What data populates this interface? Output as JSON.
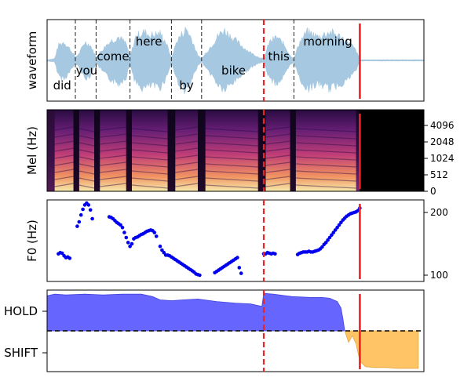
{
  "chart_data": {
    "type": "multi-panel",
    "time_range": [
      0,
      1
    ],
    "markers": {
      "dashed_red_time": 0.575,
      "solid_red_time": 0.83,
      "color": "#ee2222"
    },
    "panels": [
      {
        "id": "waveform",
        "type": "area",
        "ylabel": "waveform",
        "color": "#a6c8e0",
        "word_boundaries": [
          0.075,
          0.13,
          0.22,
          0.33,
          0.41,
          0.575,
          0.655
        ],
        "words": [
          {
            "text": "did",
            "t": 0.04,
            "level": "low"
          },
          {
            "text": "you",
            "t": 0.105,
            "level": "midlow"
          },
          {
            "text": "come",
            "t": 0.175,
            "level": "mid"
          },
          {
            "text": "here",
            "t": 0.27,
            "level": "high"
          },
          {
            "text": "by",
            "t": 0.37,
            "level": "low"
          },
          {
            "text": "bike",
            "t": 0.495,
            "level": "midlow"
          },
          {
            "text": "this",
            "t": 0.615,
            "level": "mid"
          },
          {
            "text": "morning",
            "t": 0.745,
            "level": "high"
          }
        ],
        "envelope": [
          [
            0.0,
            0.02
          ],
          [
            0.02,
            0.05
          ],
          [
            0.03,
            0.45
          ],
          [
            0.045,
            0.55
          ],
          [
            0.06,
            0.35
          ],
          [
            0.075,
            0.1
          ],
          [
            0.085,
            0.2
          ],
          [
            0.1,
            0.55
          ],
          [
            0.115,
            0.45
          ],
          [
            0.13,
            0.1
          ],
          [
            0.145,
            0.3
          ],
          [
            0.165,
            0.55
          ],
          [
            0.19,
            0.7
          ],
          [
            0.21,
            0.5
          ],
          [
            0.22,
            0.1
          ],
          [
            0.235,
            0.7
          ],
          [
            0.255,
            0.85
          ],
          [
            0.275,
            0.75
          ],
          [
            0.3,
            0.8
          ],
          [
            0.315,
            0.55
          ],
          [
            0.33,
            0.08
          ],
          [
            0.345,
            0.6
          ],
          [
            0.37,
            0.95
          ],
          [
            0.385,
            0.6
          ],
          [
            0.4,
            0.15
          ],
          [
            0.41,
            0.05
          ],
          [
            0.43,
            0.35
          ],
          [
            0.455,
            0.75
          ],
          [
            0.47,
            0.9
          ],
          [
            0.5,
            0.6
          ],
          [
            0.525,
            0.35
          ],
          [
            0.545,
            0.2
          ],
          [
            0.56,
            0.1
          ],
          [
            0.575,
            0.05
          ],
          [
            0.59,
            0.55
          ],
          [
            0.61,
            0.7
          ],
          [
            0.63,
            0.45
          ],
          [
            0.645,
            0.15
          ],
          [
            0.655,
            0.05
          ],
          [
            0.67,
            0.55
          ],
          [
            0.69,
            0.85
          ],
          [
            0.72,
            0.7
          ],
          [
            0.75,
            0.85
          ],
          [
            0.78,
            0.7
          ],
          [
            0.8,
            0.55
          ],
          [
            0.82,
            0.3
          ],
          [
            0.83,
            0.02
          ],
          [
            1.0,
            0.02
          ]
        ]
      },
      {
        "id": "mel",
        "type": "heatmap",
        "ylabel": "Mel (Hz)",
        "yticks": [
          "0",
          "512",
          "1024",
          "2048",
          "4096"
        ],
        "voiced_segments": [
          [
            0.02,
            0.07
          ],
          [
            0.085,
            0.125
          ],
          [
            0.14,
            0.21
          ],
          [
            0.225,
            0.32
          ],
          [
            0.34,
            0.4
          ],
          [
            0.42,
            0.56
          ],
          [
            0.58,
            0.645
          ],
          [
            0.66,
            0.82
          ]
        ],
        "silence_after": 0.83
      },
      {
        "id": "f0",
        "type": "scatter",
        "ylabel": "F0 (Hz)",
        "yticks": [
          100,
          200
        ],
        "ylim": [
          90,
          220
        ],
        "color": "#0000ee",
        "points": [
          [
            0.03,
            134
          ],
          [
            0.035,
            136
          ],
          [
            0.04,
            135
          ],
          [
            0.045,
            131
          ],
          [
            0.05,
            128
          ],
          [
            0.055,
            129
          ],
          [
            0.06,
            127
          ],
          [
            0.08,
            178
          ],
          [
            0.085,
            185
          ],
          [
            0.09,
            196
          ],
          [
            0.095,
            205
          ],
          [
            0.1,
            212
          ],
          [
            0.105,
            215
          ],
          [
            0.11,
            212
          ],
          [
            0.115,
            204
          ],
          [
            0.12,
            190
          ],
          [
            0.165,
            193
          ],
          [
            0.17,
            192
          ],
          [
            0.175,
            190
          ],
          [
            0.18,
            187
          ],
          [
            0.185,
            184
          ],
          [
            0.19,
            182
          ],
          [
            0.195,
            180
          ],
          [
            0.2,
            176
          ],
          [
            0.205,
            168
          ],
          [
            0.21,
            160
          ],
          [
            0.215,
            152
          ],
          [
            0.22,
            146
          ],
          [
            0.225,
            150
          ],
          [
            0.23,
            158
          ],
          [
            0.235,
            160
          ],
          [
            0.24,
            161
          ],
          [
            0.245,
            163
          ],
          [
            0.25,
            165
          ],
          [
            0.255,
            166
          ],
          [
            0.26,
            168
          ],
          [
            0.265,
            170
          ],
          [
            0.27,
            171
          ],
          [
            0.275,
            172
          ],
          [
            0.28,
            171
          ],
          [
            0.285,
            168
          ],
          [
            0.29,
            162
          ],
          [
            0.3,
            146
          ],
          [
            0.305,
            140
          ],
          [
            0.31,
            136
          ],
          [
            0.315,
            132
          ],
          [
            0.32,
            132
          ],
          [
            0.325,
            131
          ],
          [
            0.33,
            129
          ],
          [
            0.335,
            127
          ],
          [
            0.34,
            125
          ],
          [
            0.345,
            123
          ],
          [
            0.35,
            121
          ],
          [
            0.355,
            119
          ],
          [
            0.36,
            117
          ],
          [
            0.365,
            115
          ],
          [
            0.37,
            113
          ],
          [
            0.375,
            111
          ],
          [
            0.38,
            109
          ],
          [
            0.385,
            107
          ],
          [
            0.39,
            105
          ],
          [
            0.395,
            102
          ],
          [
            0.4,
            101
          ],
          [
            0.405,
            100
          ],
          [
            0.445,
            104
          ],
          [
            0.45,
            106
          ],
          [
            0.455,
            108
          ],
          [
            0.46,
            110
          ],
          [
            0.465,
            112
          ],
          [
            0.47,
            114
          ],
          [
            0.475,
            116
          ],
          [
            0.48,
            118
          ],
          [
            0.485,
            120
          ],
          [
            0.49,
            122
          ],
          [
            0.495,
            124
          ],
          [
            0.5,
            126
          ],
          [
            0.505,
            128
          ],
          [
            0.51,
            112
          ],
          [
            0.515,
            103
          ],
          [
            0.575,
            134
          ],
          [
            0.58,
            134
          ],
          [
            0.585,
            136
          ],
          [
            0.59,
            135
          ],
          [
            0.595,
            134
          ],
          [
            0.6,
            135
          ],
          [
            0.605,
            134
          ],
          [
            0.665,
            133
          ],
          [
            0.67,
            135
          ],
          [
            0.675,
            136
          ],
          [
            0.68,
            137
          ],
          [
            0.685,
            137
          ],
          [
            0.69,
            137
          ],
          [
            0.695,
            138
          ],
          [
            0.7,
            137
          ],
          [
            0.705,
            137
          ],
          [
            0.71,
            138
          ],
          [
            0.715,
            139
          ],
          [
            0.72,
            140
          ],
          [
            0.725,
            142
          ],
          [
            0.73,
            145
          ],
          [
            0.735,
            149
          ],
          [
            0.74,
            152
          ],
          [
            0.745,
            156
          ],
          [
            0.75,
            160
          ],
          [
            0.755,
            164
          ],
          [
            0.76,
            168
          ],
          [
            0.765,
            172
          ],
          [
            0.77,
            176
          ],
          [
            0.775,
            180
          ],
          [
            0.78,
            184
          ],
          [
            0.785,
            188
          ],
          [
            0.79,
            191
          ],
          [
            0.795,
            194
          ],
          [
            0.8,
            196
          ],
          [
            0.805,
            198
          ],
          [
            0.81,
            199
          ],
          [
            0.815,
            200
          ],
          [
            0.82,
            201
          ],
          [
            0.825,
            203
          ],
          [
            0.83,
            207
          ]
        ]
      },
      {
        "id": "vad",
        "type": "area",
        "categories": [
          "HOLD",
          "SHIFT"
        ],
        "hold_color": "#6666ff",
        "shift_color": "#ffc466",
        "threshold": 0.5,
        "hold_curve": [
          [
            0.0,
            0.93
          ],
          [
            0.02,
            0.95
          ],
          [
            0.05,
            0.94
          ],
          [
            0.1,
            0.95
          ],
          [
            0.15,
            0.94
          ],
          [
            0.2,
            0.95
          ],
          [
            0.25,
            0.95
          ],
          [
            0.28,
            0.92
          ],
          [
            0.3,
            0.88
          ],
          [
            0.33,
            0.87
          ],
          [
            0.36,
            0.88
          ],
          [
            0.4,
            0.89
          ],
          [
            0.45,
            0.86
          ],
          [
            0.5,
            0.84
          ],
          [
            0.54,
            0.83
          ],
          [
            0.57,
            0.8
          ],
          [
            0.575,
            0.96
          ],
          [
            0.6,
            0.95
          ],
          [
            0.65,
            0.92
          ],
          [
            0.7,
            0.91
          ],
          [
            0.73,
            0.91
          ],
          [
            0.75,
            0.9
          ],
          [
            0.77,
            0.86
          ],
          [
            0.78,
            0.78
          ],
          [
            0.785,
            0.65
          ],
          [
            0.79,
            0.5
          ]
        ],
        "shift_curve": [
          [
            0.79,
            0.5
          ],
          [
            0.8,
            0.36
          ],
          [
            0.81,
            0.44
          ],
          [
            0.82,
            0.34
          ],
          [
            0.83,
            0.13
          ],
          [
            0.845,
            0.06
          ],
          [
            0.87,
            0.05
          ],
          [
            0.9,
            0.05
          ],
          [
            0.93,
            0.04
          ],
          [
            0.95,
            0.04
          ],
          [
            0.985,
            0.04
          ],
          [
            0.985,
            0.5
          ]
        ]
      }
    ]
  }
}
